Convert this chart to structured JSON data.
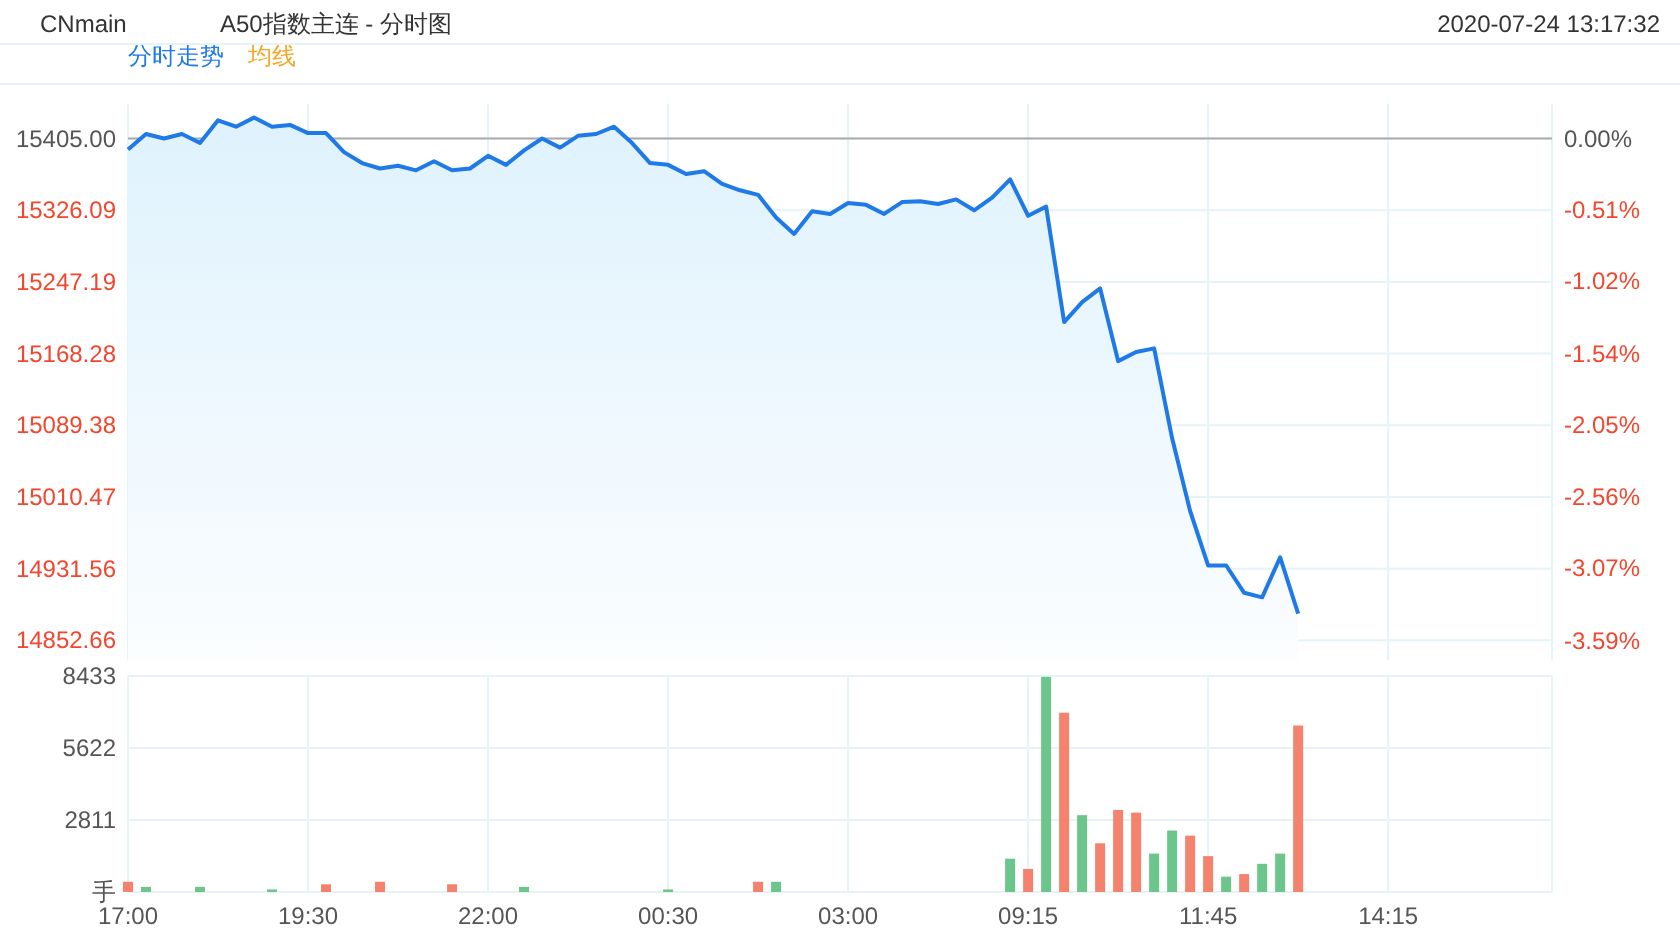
{
  "chart_data": [
    {
      "type": "area",
      "title": "A50指数主连 - 分时图",
      "annotations": [
        "CNmain",
        "2020-07-24 13:17:32",
        "均线"
      ],
      "categories": [
        null,
        null,
        null,
        null,
        null,
        null,
        null,
        null,
        null,
        null,
        null,
        null,
        null,
        null,
        null,
        null,
        null,
        null,
        null,
        null,
        null,
        null,
        null,
        null,
        null,
        null,
        null,
        null,
        null,
        null,
        null,
        null,
        null,
        null,
        null,
        null,
        null,
        null,
        null,
        null,
        null,
        null,
        null,
        null,
        null,
        null,
        null,
        null,
        null,
        null,
        null,
        null,
        null,
        null,
        null,
        null,
        null,
        null,
        null,
        null,
        null,
        null,
        null,
        null,
        null,
        null,
        null,
        null,
        null,
        null,
        null,
        null,
        null,
        null,
        null,
        null,
        null,
        null,
        null,
        null
      ],
      "series": [
        {
          "name": "分时走势",
          "color": "#1f7ae8",
          "values": [
            15393,
            15410,
            15405,
            15410,
            15400,
            15425,
            15418,
            15428,
            15418,
            15420,
            15411,
            15411,
            15390,
            15378,
            15372,
            15375,
            15370,
            15380,
            15370,
            15372,
            15386,
            15376,
            15392,
            15405,
            15395,
            15408,
            15410,
            15418,
            15400,
            15378,
            15376,
            15366,
            15369,
            15355,
            15348,
            15343,
            15318,
            15300,
            15325,
            15322,
            15334,
            15332,
            15322,
            15335,
            15336,
            15333,
            15338,
            15326,
            15340,
            15360,
            15320,
            15330,
            15203,
            15225,
            15240,
            15160,
            15170,
            15174,
            15075,
            14995,
            14935,
            14935,
            14905,
            14900,
            14944,
            14882,
            null,
            null,
            null,
            null,
            null,
            null,
            null,
            null,
            null,
            null,
            null,
            null,
            null,
            null
          ]
        }
      ],
      "ylim": [
        14831,
        15443
      ],
      "yticks": [
        14852.66,
        14931.56,
        15010.47,
        15089.38,
        15168.28,
        15247.19,
        15326.09,
        {
          "value": 15405,
          "label": "15405.00"
        }
      ],
      "y2lim": [
        -3.726,
        0.247
      ],
      "y2ticks": [
        {
          "value": -3.59,
          "label": "-3.59%"
        },
        {
          "value": -3.07,
          "label": "-3.07%"
        },
        {
          "value": -2.56,
          "label": "-2.56%"
        },
        {
          "value": -2.05,
          "label": "-2.05%"
        },
        {
          "value": -1.54,
          "label": "-1.54%"
        },
        {
          "value": -1.02,
          "label": "-1.02%"
        },
        {
          "value": -0.51,
          "label": "-0.51%"
        },
        {
          "value": 0,
          "label": "0.00%"
        }
      ],
      "ref_lines": [
        {
          "axis": "y",
          "value": 15405,
          "color": "#aaaaaa"
        }
      ],
      "grid": true,
      "legend": "top left",
      "tick_labels": "y"
    },
    {
      "type": "bar",
      "categories": [
        "17:00",
        null,
        null,
        null,
        null,
        null,
        null,
        null,
        null,
        null,
        "19:30",
        null,
        null,
        null,
        null,
        null,
        null,
        null,
        null,
        null,
        "22:00",
        null,
        null,
        null,
        null,
        null,
        null,
        null,
        null,
        null,
        "00:30",
        null,
        null,
        null,
        null,
        null,
        null,
        null,
        null,
        null,
        "03:00",
        null,
        null,
        null,
        null,
        null,
        null,
        null,
        null,
        null,
        "09:15",
        null,
        null,
        null,
        null,
        null,
        null,
        null,
        null,
        null,
        "11:45",
        null,
        null,
        null,
        null,
        null,
        null,
        null,
        null,
        null,
        "14:15",
        null,
        null,
        null,
        null,
        null,
        null,
        null,
        null,
        null
      ],
      "series": [
        {
          "color": "#f4826c",
          "values": [
            400,
            null,
            null,
            null,
            null,
            null,
            null,
            null,
            null,
            null,
            null,
            300,
            null,
            null,
            400,
            null,
            null,
            null,
            300,
            null,
            null,
            null,
            null,
            null,
            null,
            null,
            null,
            null,
            null,
            null,
            null,
            null,
            null,
            null,
            null,
            400,
            null,
            null,
            null,
            null,
            null,
            null,
            null,
            null,
            null,
            null,
            null,
            null,
            null,
            null,
            900,
            null,
            7000,
            null,
            1900,
            3200,
            3100,
            null,
            null,
            2200,
            1400,
            null,
            700,
            null,
            null,
            6500,
            null,
            null,
            null,
            null,
            null,
            null,
            null,
            null,
            null,
            null,
            null,
            null,
            null,
            null
          ]
        },
        {
          "color": "#6cc58a",
          "values": [
            null,
            200,
            null,
            null,
            200,
            null,
            null,
            null,
            100,
            null,
            null,
            null,
            null,
            null,
            null,
            null,
            null,
            null,
            null,
            null,
            null,
            null,
            200,
            null,
            null,
            null,
            null,
            null,
            null,
            null,
            100,
            null,
            null,
            null,
            null,
            null,
            400,
            null,
            null,
            null,
            null,
            null,
            null,
            null,
            null,
            null,
            null,
            null,
            null,
            1300,
            null,
            8400,
            null,
            3000,
            null,
            null,
            null,
            1500,
            2400,
            null,
            null,
            600,
            null,
            1100,
            1500,
            null,
            null,
            null,
            null,
            null,
            null,
            null,
            null,
            null,
            null,
            null,
            null,
            null,
            null,
            null
          ]
        }
      ],
      "ylim": [
        0,
        8433
      ],
      "yticks": [
        {
          "value": 0,
          "label": "手"
        },
        2811,
        5622,
        8433
      ],
      "grid": true
    }
  ]
}
